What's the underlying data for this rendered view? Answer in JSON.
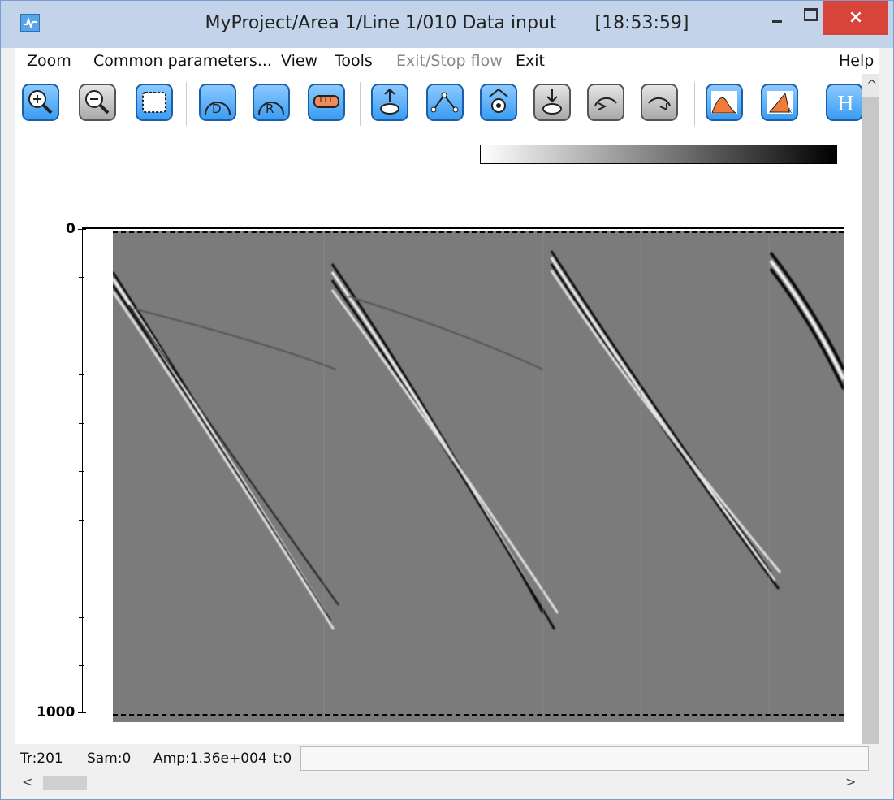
{
  "window": {
    "title": "MyProject/Area 1/Line 1/010 Data input",
    "time": "[18:53:59]",
    "close_glyph": "×"
  },
  "menu": [
    {
      "label": "Zoom",
      "enabled": true
    },
    {
      "label": "Common parameters...",
      "enabled": true
    },
    {
      "label": "View",
      "enabled": true
    },
    {
      "label": "Tools",
      "enabled": true
    },
    {
      "label": "Exit/Stop flow",
      "enabled": false
    },
    {
      "label": "Exit",
      "enabled": true
    },
    {
      "label": "Help",
      "enabled": true
    }
  ],
  "toolbar": {
    "buttons": [
      {
        "icon": "zoom-in-icon",
        "style": "blue"
      },
      {
        "icon": "zoom-out-icon",
        "style": "gray"
      },
      {
        "icon": "select-area-icon",
        "style": "blue"
      },
      {
        "icon": "d-arc-icon",
        "style": "blue",
        "letter": "D"
      },
      {
        "icon": "r-arc-icon",
        "style": "blue",
        "letter": "R"
      },
      {
        "icon": "ruler-icon",
        "style": "blue"
      },
      {
        "icon": "db-upload-icon",
        "style": "blue",
        "letter": "db"
      },
      {
        "icon": "pick-line-icon",
        "style": "blue"
      },
      {
        "icon": "gear-pick-icon",
        "style": "blue"
      },
      {
        "icon": "db-download-icon",
        "style": "gray",
        "letter": "db"
      },
      {
        "icon": "undo-icon",
        "style": "gray"
      },
      {
        "icon": "redo-icon",
        "style": "gray"
      },
      {
        "icon": "spectrum-icon",
        "style": "blue"
      },
      {
        "icon": "fk-icon",
        "style": "blue"
      },
      {
        "icon": "header-icon",
        "style": "blue",
        "letter": "H"
      }
    ]
  },
  "plot": {
    "colorbar_colors": [
      "#ffffff",
      "#000000"
    ],
    "y_axis": {
      "min_label": "0",
      "max_label": "1000"
    },
    "background_color": "#7b7b7b"
  },
  "status": {
    "trace": "Tr:201",
    "sample": "Sam:0",
    "amplitude": "Amp:1.36e+004",
    "time": "t:0"
  }
}
